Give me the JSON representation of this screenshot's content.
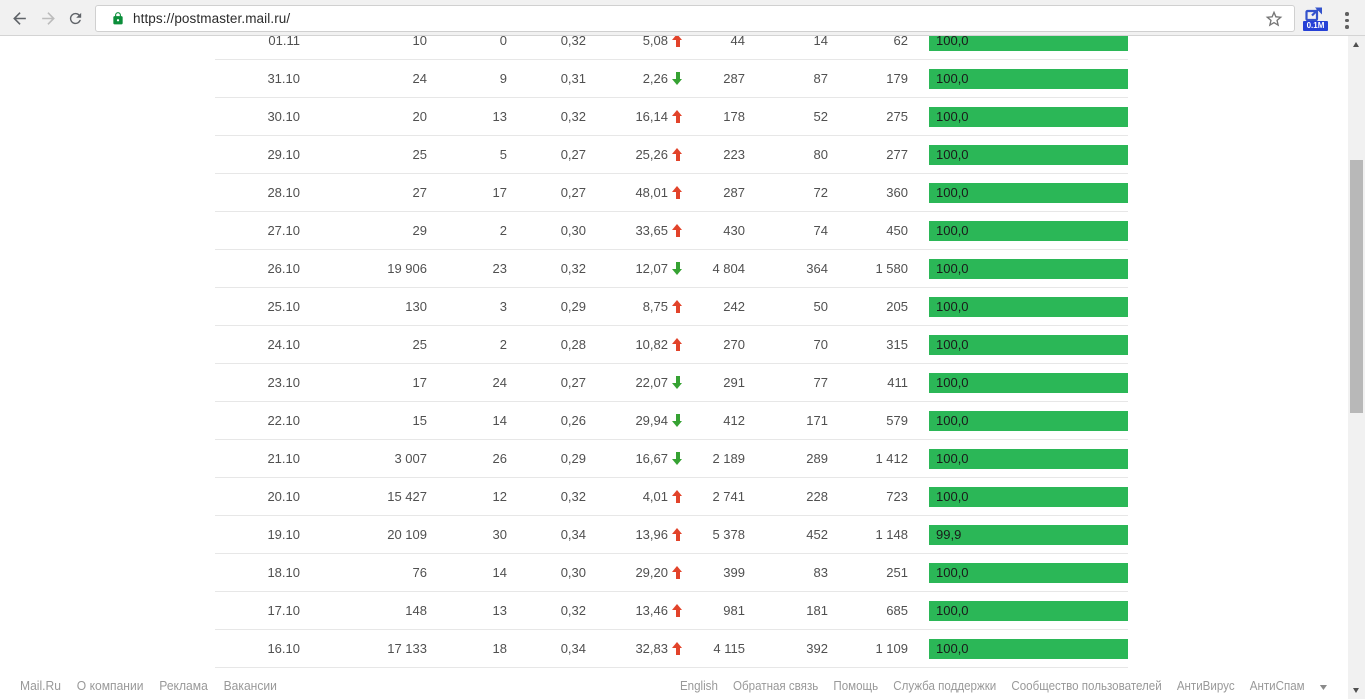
{
  "browser": {
    "url": "https://postmaster.mail.ru/",
    "extension_badge": "0.1M"
  },
  "colors": {
    "bar_green": "#2bb757",
    "arrow_up": "#e2432a",
    "arrow_down": "#36a233"
  },
  "table": {
    "rows": [
      {
        "date": "01.11",
        "v1": "10",
        "v2": "0",
        "v3": "0,32",
        "pct": "5,08",
        "trend": "up",
        "v4": "44",
        "v5": "14",
        "v6": "62",
        "bar": "100,0"
      },
      {
        "date": "31.10",
        "v1": "24",
        "v2": "9",
        "v3": "0,31",
        "pct": "2,26",
        "trend": "down",
        "v4": "287",
        "v5": "87",
        "v6": "179",
        "bar": "100,0"
      },
      {
        "date": "30.10",
        "v1": "20",
        "v2": "13",
        "v3": "0,32",
        "pct": "16,14",
        "trend": "up",
        "v4": "178",
        "v5": "52",
        "v6": "275",
        "bar": "100,0"
      },
      {
        "date": "29.10",
        "v1": "25",
        "v2": "5",
        "v3": "0,27",
        "pct": "25,26",
        "trend": "up",
        "v4": "223",
        "v5": "80",
        "v6": "277",
        "bar": "100,0"
      },
      {
        "date": "28.10",
        "v1": "27",
        "v2": "17",
        "v3": "0,27",
        "pct": "48,01",
        "trend": "up",
        "v4": "287",
        "v5": "72",
        "v6": "360",
        "bar": "100,0"
      },
      {
        "date": "27.10",
        "v1": "29",
        "v2": "2",
        "v3": "0,30",
        "pct": "33,65",
        "trend": "up",
        "v4": "430",
        "v5": "74",
        "v6": "450",
        "bar": "100,0"
      },
      {
        "date": "26.10",
        "v1": "19 906",
        "v2": "23",
        "v3": "0,32",
        "pct": "12,07",
        "trend": "down",
        "v4": "4 804",
        "v5": "364",
        "v6": "1 580",
        "bar": "100,0"
      },
      {
        "date": "25.10",
        "v1": "130",
        "v2": "3",
        "v3": "0,29",
        "pct": "8,75",
        "trend": "up",
        "v4": "242",
        "v5": "50",
        "v6": "205",
        "bar": "100,0"
      },
      {
        "date": "24.10",
        "v1": "25",
        "v2": "2",
        "v3": "0,28",
        "pct": "10,82",
        "trend": "up",
        "v4": "270",
        "v5": "70",
        "v6": "315",
        "bar": "100,0"
      },
      {
        "date": "23.10",
        "v1": "17",
        "v2": "24",
        "v3": "0,27",
        "pct": "22,07",
        "trend": "down",
        "v4": "291",
        "v5": "77",
        "v6": "411",
        "bar": "100,0"
      },
      {
        "date": "22.10",
        "v1": "15",
        "v2": "14",
        "v3": "0,26",
        "pct": "29,94",
        "trend": "down",
        "v4": "412",
        "v5": "171",
        "v6": "579",
        "bar": "100,0"
      },
      {
        "date": "21.10",
        "v1": "3 007",
        "v2": "26",
        "v3": "0,29",
        "pct": "16,67",
        "trend": "down",
        "v4": "2 189",
        "v5": "289",
        "v6": "1 412",
        "bar": "100,0"
      },
      {
        "date": "20.10",
        "v1": "15 427",
        "v2": "12",
        "v3": "0,32",
        "pct": "4,01",
        "trend": "up",
        "v4": "2 741",
        "v5": "228",
        "v6": "723",
        "bar": "100,0"
      },
      {
        "date": "19.10",
        "v1": "20 109",
        "v2": "30",
        "v3": "0,34",
        "pct": "13,96",
        "trend": "up",
        "v4": "5 378",
        "v5": "452",
        "v6": "1 148",
        "bar": "99,9"
      },
      {
        "date": "18.10",
        "v1": "76",
        "v2": "14",
        "v3": "0,30",
        "pct": "29,20",
        "trend": "up",
        "v4": "399",
        "v5": "83",
        "v6": "251",
        "bar": "100,0"
      },
      {
        "date": "17.10",
        "v1": "148",
        "v2": "13",
        "v3": "0,32",
        "pct": "13,46",
        "trend": "up",
        "v4": "981",
        "v5": "181",
        "v6": "685",
        "bar": "100,0"
      },
      {
        "date": "16.10",
        "v1": "17 133",
        "v2": "18",
        "v3": "0,34",
        "pct": "32,83",
        "trend": "up",
        "v4": "4 115",
        "v5": "392",
        "v6": "1 109",
        "bar": "100,0"
      }
    ]
  },
  "footer": {
    "left": [
      "Mail.Ru",
      "О компании",
      "Реклама",
      "Вакансии"
    ],
    "right": [
      "English",
      "Обратная связь",
      "Помощь",
      "Служба поддержки",
      "Сообщество пользователей",
      "АнтиВирус",
      "АнтиСпам"
    ]
  }
}
